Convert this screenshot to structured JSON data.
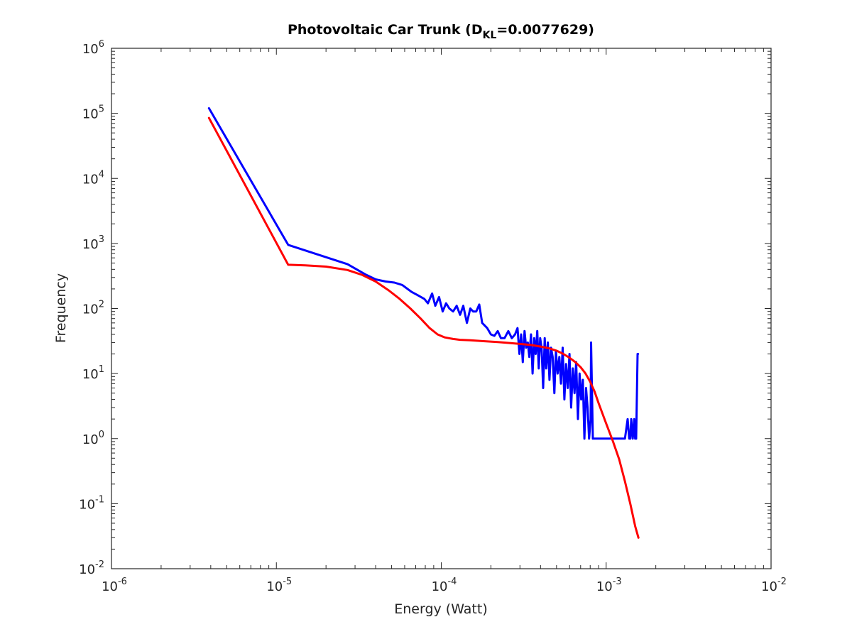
{
  "chart_data": {
    "type": "line",
    "title": {
      "prefix": "Photovoltaic Car Trunk (D",
      "subscript": "KL",
      "suffix": "=0.0077629)"
    },
    "xlabel": "Energy (Watt)",
    "ylabel": "Frequency",
    "x_scale": "log",
    "y_scale": "log",
    "xlim": [
      1e-06,
      0.01
    ],
    "ylim": [
      0.01,
      1000000
    ],
    "x_ticks": [
      {
        "value": 1e-06,
        "base": "10",
        "exp": "-6"
      },
      {
        "value": 1e-05,
        "base": "10",
        "exp": "-5"
      },
      {
        "value": 0.0001,
        "base": "10",
        "exp": "-4"
      },
      {
        "value": 0.001,
        "base": "10",
        "exp": "-3"
      },
      {
        "value": 0.01,
        "base": "10",
        "exp": "-2"
      }
    ],
    "y_ticks": [
      {
        "value": 0.01,
        "base": "10",
        "exp": "-2"
      },
      {
        "value": 0.1,
        "base": "10",
        "exp": "-1"
      },
      {
        "value": 1,
        "base": "10",
        "exp": "0"
      },
      {
        "value": 10,
        "base": "10",
        "exp": "1"
      },
      {
        "value": 100,
        "base": "10",
        "exp": "2"
      },
      {
        "value": 1000,
        "base": "10",
        "exp": "3"
      },
      {
        "value": 10000,
        "base": "10",
        "exp": "4"
      },
      {
        "value": 100000,
        "base": "10",
        "exp": "5"
      },
      {
        "value": 1000000,
        "base": "10",
        "exp": "6"
      }
    ],
    "grid": false,
    "box": true,
    "series": [
      {
        "color": "#0000ff",
        "x": [
          3.9e-06,
          1.18e-05,
          2.7e-05,
          3.5e-05,
          4e-05,
          4.6e-05,
          5.2e-05,
          5.8e-05,
          6.6e-05,
          7.2e-05,
          7.9e-05,
          8.3e-05,
          8.8e-05,
          9.2e-05,
          9.7e-05,
          0.000102,
          0.000107,
          0.000112,
          0.000118,
          0.000124,
          0.00013,
          0.000136,
          0.000143,
          0.00015,
          0.000156,
          0.000163,
          0.00017,
          0.000177,
          0.000183,
          0.00019,
          0.0002,
          0.00021,
          0.00022,
          0.00023,
          0.000242,
          0.000255,
          0.000268,
          0.00028,
          0.00029,
          0.000298,
          0.000305,
          0.000312,
          0.00032,
          0.000327,
          0.000335,
          0.000342,
          0.00035,
          0.000358,
          0.000366,
          0.000374,
          0.000382,
          0.00039,
          0.000398,
          0.000406,
          0.000415,
          0.000424,
          0.000433,
          0.000443,
          0.000453,
          0.000463,
          0.000474,
          0.000485,
          0.000496,
          0.000508,
          0.00052,
          0.000532,
          0.000545,
          0.000558,
          0.000571,
          0.000585,
          0.000599,
          0.000613,
          0.000628,
          0.000643,
          0.000658,
          0.000674,
          0.00069,
          0.000706,
          0.000722,
          0.000738,
          0.000755,
          0.000772,
          0.000788,
          0.000805,
          0.00081,
          0.00083,
          0.000835,
          0.0009,
          0.001,
          0.0011,
          0.0012,
          0.0013,
          0.00135,
          0.00138,
          0.0014,
          0.00142,
          0.00145,
          0.00148,
          0.0015,
          0.00152,
          0.00155,
          0.00156
        ],
        "y": [
          120000,
          950,
          480,
          330,
          280,
          260,
          250,
          230,
          180,
          160,
          140,
          120,
          170,
          110,
          150,
          90,
          120,
          100,
          90,
          110,
          80,
          110,
          60,
          100,
          90,
          90,
          115,
          60,
          55,
          50,
          40,
          38,
          45,
          35,
          35,
          45,
          35,
          40,
          50,
          20,
          40,
          15,
          45,
          25,
          30,
          18,
          40,
          10,
          35,
          20,
          45,
          12,
          35,
          25,
          6,
          35,
          12,
          30,
          8,
          25,
          18,
          5,
          22,
          10,
          18,
          7,
          25,
          4,
          14,
          6,
          20,
          3,
          12,
          5,
          15,
          2,
          10,
          4,
          8,
          1,
          6,
          3,
          1,
          2,
          30,
          1,
          1,
          1,
          1,
          1,
          1,
          1,
          2,
          1,
          1,
          2,
          1,
          2,
          1,
          1,
          20,
          20
        ]
      },
      {
        "color": "#ff0000",
        "x": [
          3.9e-06,
          1.18e-05,
          1.5e-05,
          2e-05,
          2.7e-05,
          3.3e-05,
          4e-05,
          4.8e-05,
          5.6e-05,
          6.5e-05,
          7.5e-05,
          8.5e-05,
          9.5e-05,
          0.000105,
          0.000118,
          0.00013,
          0.00015,
          0.00018,
          0.00022,
          0.00026,
          0.0003,
          0.00035,
          0.0004,
          0.00045,
          0.0005,
          0.00055,
          0.0006,
          0.00065,
          0.0007,
          0.00075,
          0.0008,
          0.00085,
          0.0009,
          0.001,
          0.0011,
          0.0012,
          0.0013,
          0.0014,
          0.0015,
          0.00157
        ],
        "y": [
          85000,
          470,
          460,
          440,
          390,
          330,
          260,
          190,
          140,
          100,
          70,
          50,
          40,
          36,
          34,
          33,
          32.5,
          31.5,
          30.5,
          29.5,
          28.5,
          27.5,
          26,
          24.5,
          22.5,
          20,
          17.5,
          15,
          12.5,
          10,
          7.5,
          5.3,
          3.5,
          1.7,
          0.9,
          0.48,
          0.22,
          0.1,
          0.045,
          0.03
        ]
      }
    ]
  }
}
